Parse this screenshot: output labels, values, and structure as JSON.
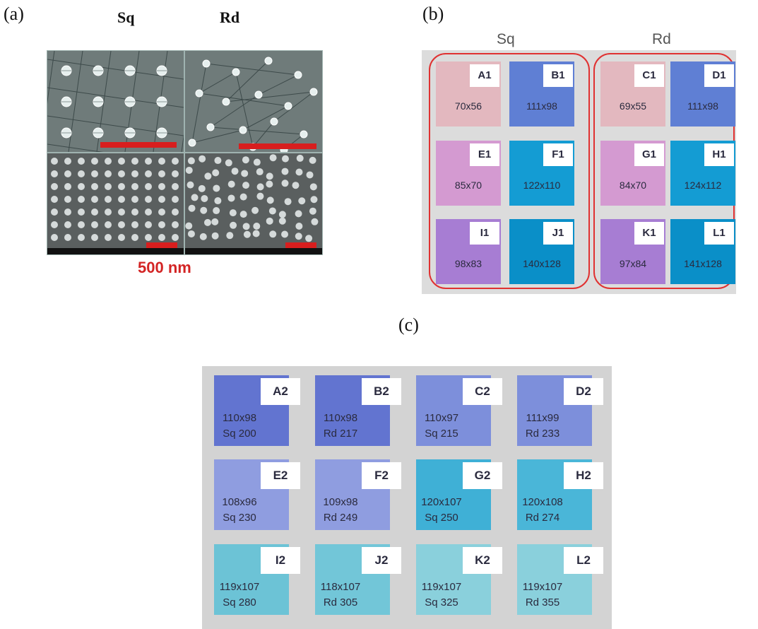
{
  "panel_a": {
    "label": "(a)",
    "col_sq": "Sq",
    "col_rd": "Rd",
    "scale_text": "500 nm",
    "scalebar_color": "#d81e1e"
  },
  "panel_b": {
    "label": "(b)",
    "col_sq": "Sq",
    "col_rd": "Rd",
    "outline_color": "#e03131",
    "tiles": [
      {
        "id": "A1",
        "size": "70x56",
        "color": "#e3b8bf"
      },
      {
        "id": "B1",
        "size": "111x98",
        "color": "#5f7fd4"
      },
      {
        "id": "C1",
        "size": "69x55",
        "color": "#e3b8bf"
      },
      {
        "id": "D1",
        "size": "111x98",
        "color": "#5f7fd4"
      },
      {
        "id": "E1",
        "size": "85x70",
        "color": "#d49ad1"
      },
      {
        "id": "F1",
        "size": "122x110",
        "color": "#149cd3"
      },
      {
        "id": "G1",
        "size": "84x70",
        "color": "#d49ad1"
      },
      {
        "id": "H1",
        "size": "124x112",
        "color": "#149cd3"
      },
      {
        "id": "I1",
        "size": "98x83",
        "color": "#a77dd3"
      },
      {
        "id": "J1",
        "size": "140x128",
        "color": "#0a8fc8"
      },
      {
        "id": "K1",
        "size": "97x84",
        "color": "#a77dd3"
      },
      {
        "id": "L1",
        "size": "141x128",
        "color": "#0a8fc8"
      }
    ]
  },
  "panel_c": {
    "label": "(c)",
    "tiles": [
      {
        "id": "A2",
        "size": "110x98",
        "spec": "Sq 200",
        "color": "#6274d0"
      },
      {
        "id": "B2",
        "size": "110x98",
        "spec": "Rd 217",
        "color": "#6274d0"
      },
      {
        "id": "C2",
        "size": "110x97",
        "spec": "Sq 215",
        "color": "#7d8fdb"
      },
      {
        "id": "D2",
        "size": "111x99",
        "spec": "Rd 233",
        "color": "#7d8fdb"
      },
      {
        "id": "E2",
        "size": "108x96",
        "spec": "Sq 230",
        "color": "#8f9de0"
      },
      {
        "id": "F2",
        "size": "109x98",
        "spec": "Rd 249",
        "color": "#8f9de0"
      },
      {
        "id": "G2",
        "size": "120x107",
        "spec": "Sq 250",
        "color": "#3fb0d6"
      },
      {
        "id": "H2",
        "size": "120x108",
        "spec": "Rd 274",
        "color": "#4ab6d8"
      },
      {
        "id": "I2",
        "size": "119x107",
        "spec": "Sq 280",
        "color": "#6cc3d6"
      },
      {
        "id": "J2",
        "size": "118x107",
        "spec": "Rd 305",
        "color": "#72c6d8"
      },
      {
        "id": "K2",
        "size": "119x107",
        "spec": "Sq 325",
        "color": "#8ad0dc"
      },
      {
        "id": "L2",
        "size": "119x107",
        "spec": "Rd 355",
        "color": "#8ad0dc"
      }
    ]
  }
}
